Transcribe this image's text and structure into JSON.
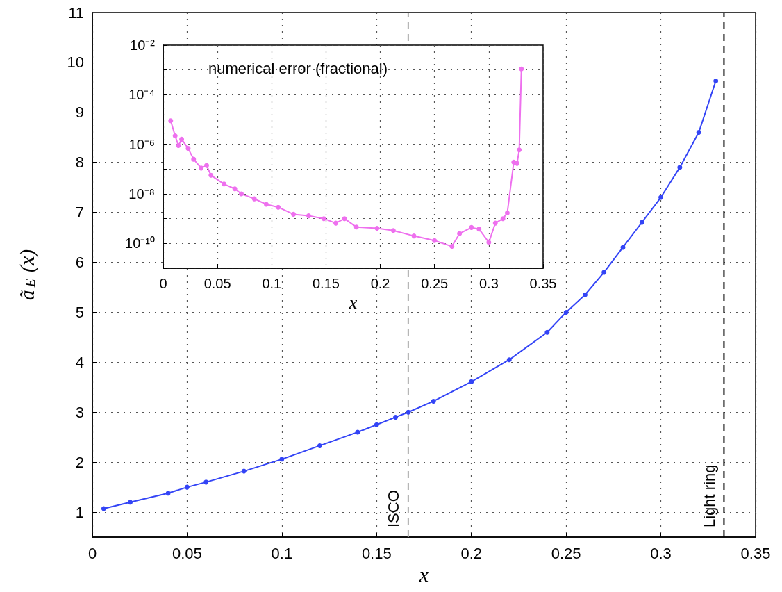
{
  "chart_data": [
    {
      "type": "line",
      "xlabel": "x",
      "ylabel": "ã$_{E}$ (x)",
      "xlim": [
        0,
        0.35
      ],
      "ylim": [
        0.5,
        11
      ],
      "xticks": [
        0,
        0.05,
        0.1,
        0.15,
        0.2,
        0.25,
        0.3,
        0.35
      ],
      "yticks": [
        1,
        2,
        3,
        4,
        5,
        6,
        7,
        8,
        9,
        10,
        11
      ],
      "grid": true,
      "marker": "circle",
      "line_style": "solid",
      "series": [
        {
          "color": "#3344f6",
          "x": [
            0.006,
            0.02,
            0.04,
            0.05,
            0.06,
            0.08,
            0.1,
            0.12,
            0.14,
            0.15,
            0.16,
            0.1667,
            0.18,
            0.2,
            0.22,
            0.24,
            0.25,
            0.26,
            0.27,
            0.28,
            0.29,
            0.3,
            0.31,
            0.32,
            0.329
          ],
          "values": [
            1.07,
            1.2,
            1.38,
            1.5,
            1.6,
            1.82,
            2.06,
            2.33,
            2.6,
            2.75,
            2.9,
            3.0,
            3.22,
            3.61,
            4.05,
            4.6,
            5.0,
            5.35,
            5.8,
            6.3,
            6.8,
            7.3,
            7.9,
            8.6,
            9.63
          ]
        }
      ],
      "ref_lines": [
        {
          "axis": "x",
          "value": 0.1667,
          "label": "ISCO",
          "color": "#aaaaaa",
          "line_style": "dashed"
        },
        {
          "axis": "x",
          "value": 0.3333,
          "label": "Light ring",
          "color": "#000000",
          "line_style": "dashed"
        }
      ]
    },
    {
      "type": "line",
      "title": "numerical error (fractional)",
      "xlabel": "x",
      "log": "y",
      "xlim": [
        0,
        0.35
      ],
      "ylim": [
        1e-11,
        0.01
      ],
      "xticks": [
        0,
        0.05,
        0.1,
        0.15,
        0.2,
        0.25,
        0.3,
        0.35
      ],
      "yticks": [
        {
          "value": 1e-11,
          "label": null
        },
        {
          "value": 1e-10,
          "label": "10⁻¹⁰"
        },
        {
          "value": 1e-09,
          "label": null
        },
        {
          "value": 1e-08,
          "label": "10⁻⁸"
        },
        {
          "value": 1e-07,
          "label": null
        },
        {
          "value": 1e-06,
          "label": "10⁻⁶"
        },
        {
          "value": 1e-05,
          "label": null
        },
        {
          "value": 0.0001,
          "label": "10⁻⁴"
        },
        {
          "value": 0.001,
          "label": null
        },
        {
          "value": 0.01,
          "label": "10⁻²"
        }
      ],
      "grid": true,
      "marker": "circle",
      "line_style": "solid",
      "series": [
        {
          "color": "#ee70ee",
          "x": [
            0.0069,
            0.011,
            0.014,
            0.017,
            0.023,
            0.028,
            0.035,
            0.04,
            0.044,
            0.056,
            0.066,
            0.072,
            0.084,
            0.095,
            0.106,
            0.12,
            0.134,
            0.148,
            0.159,
            0.167,
            0.178,
            0.197,
            0.212,
            0.231,
            0.25,
            0.266,
            0.273,
            0.284,
            0.291,
            0.3,
            0.306,
            0.313,
            0.317,
            0.323,
            0.326,
            0.328,
            0.33
          ],
          "values": [
            8.9e-06,
            2.2e-06,
            8.9e-07,
            1.6e-06,
            6.8e-07,
            2.5e-07,
            1.1e-07,
            1.4e-07,
            5.6e-08,
            2.5e-08,
            1.6e-08,
            1e-08,
            6.3e-09,
            3.8e-09,
            2.9e-09,
            1.5e-09,
            1.3e-09,
            1e-09,
            6.6e-10,
            1e-09,
            4.6e-10,
            4.1e-10,
            3.3e-10,
            2e-10,
            1.3e-10,
            7.6e-11,
            2.5e-10,
            4.4e-10,
            3.8e-10,
            1.1e-10,
            6.6e-10,
            1e-09,
            1.7e-09,
            1.9e-07,
            1.7e-07,
            5.9e-07,
            0.0011
          ]
        }
      ]
    }
  ]
}
